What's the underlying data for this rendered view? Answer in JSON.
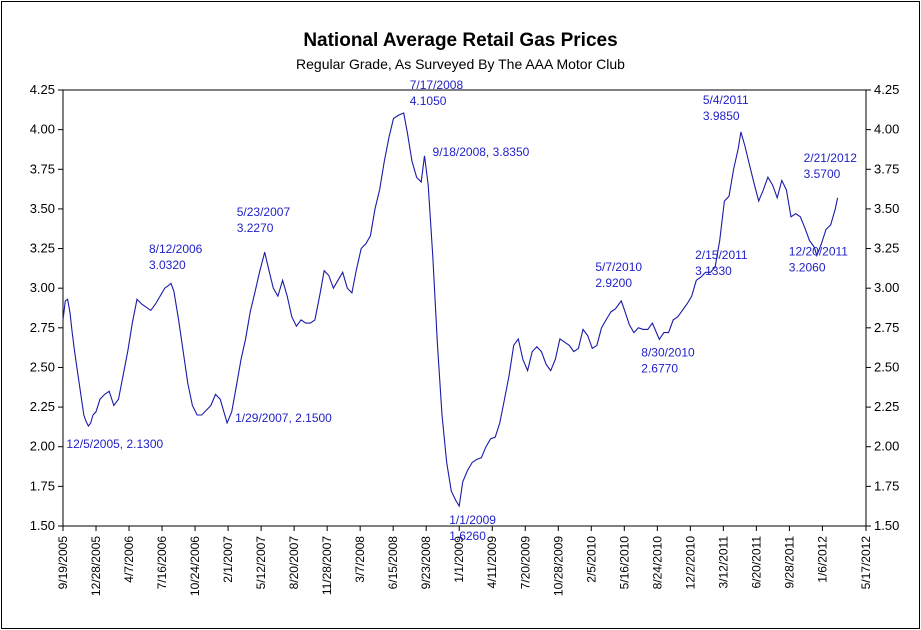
{
  "chart_data": {
    "type": "line",
    "title": "National Average Retail Gas Prices",
    "subtitle": "Regular Grade, As Surveyed By The AAA Motor Club",
    "xlabel": "",
    "ylabel": "",
    "ylim": [
      1.5,
      4.25
    ],
    "xlim": [
      "2005-09-19",
      "2012-05-17"
    ],
    "grid": false,
    "line_color": "#1a1aa8",
    "annotation_color": "#1f1fc8",
    "y_ticks": [
      "1.50",
      "1.75",
      "2.00",
      "2.25",
      "2.50",
      "2.75",
      "3.00",
      "3.25",
      "3.50",
      "3.75",
      "4.00",
      "4.25"
    ],
    "x_ticks": [
      {
        "date": "2005-09-19",
        "label": "9/19/2005"
      },
      {
        "date": "2005-12-28",
        "label": "12/28/2005"
      },
      {
        "date": "2006-04-07",
        "label": "4/7/2006"
      },
      {
        "date": "2006-07-16",
        "label": "7/16/2006"
      },
      {
        "date": "2006-10-24",
        "label": "10/24/2006"
      },
      {
        "date": "2007-02-01",
        "label": "2/1/2007"
      },
      {
        "date": "2007-05-12",
        "label": "5/12/2007"
      },
      {
        "date": "2007-08-20",
        "label": "8/20/2007"
      },
      {
        "date": "2007-11-28",
        "label": "11/28/2007"
      },
      {
        "date": "2008-03-07",
        "label": "3/7/2008"
      },
      {
        "date": "2008-06-15",
        "label": "6/15/2008"
      },
      {
        "date": "2008-09-23",
        "label": "9/23/2008"
      },
      {
        "date": "2009-01-01",
        "label": "1/1/2009"
      },
      {
        "date": "2009-04-11",
        "label": "4/11/2009"
      },
      {
        "date": "2009-07-20",
        "label": "7/20/2009"
      },
      {
        "date": "2009-10-28",
        "label": "10/28/2009"
      },
      {
        "date": "2010-02-05",
        "label": "2/5/2010"
      },
      {
        "date": "2010-05-16",
        "label": "5/16/2010"
      },
      {
        "date": "2010-08-24",
        "label": "8/24/2010"
      },
      {
        "date": "2010-12-02",
        "label": "12/2/2010"
      },
      {
        "date": "2011-03-12",
        "label": "3/12/2011"
      },
      {
        "date": "2011-06-20",
        "label": "6/20/2011"
      },
      {
        "date": "2011-09-28",
        "label": "9/28/2011"
      },
      {
        "date": "2012-01-06",
        "label": "1/6/2012"
      },
      {
        "date": "2012-05-17",
        "label": "5/17/2012"
      }
    ],
    "series": [
      {
        "points": [
          [
            "2005-09-19",
            2.8
          ],
          [
            "2005-09-26",
            2.92
          ],
          [
            "2005-10-03",
            2.93
          ],
          [
            "2005-10-10",
            2.85
          ],
          [
            "2005-10-17",
            2.72
          ],
          [
            "2005-10-24",
            2.6
          ],
          [
            "2005-10-31",
            2.5
          ],
          [
            "2005-11-07",
            2.4
          ],
          [
            "2005-11-14",
            2.3
          ],
          [
            "2005-11-21",
            2.2
          ],
          [
            "2005-11-28",
            2.16
          ],
          [
            "2005-12-05",
            2.13
          ],
          [
            "2005-12-12",
            2.15
          ],
          [
            "2005-12-19",
            2.2
          ],
          [
            "2005-12-28",
            2.22
          ],
          [
            "2006-01-09",
            2.3
          ],
          [
            "2006-01-23",
            2.33
          ],
          [
            "2006-02-06",
            2.35
          ],
          [
            "2006-02-20",
            2.26
          ],
          [
            "2006-03-06",
            2.3
          ],
          [
            "2006-03-20",
            2.45
          ],
          [
            "2006-04-03",
            2.6
          ],
          [
            "2006-04-17",
            2.78
          ],
          [
            "2006-05-01",
            2.93
          ],
          [
            "2006-05-15",
            2.9
          ],
          [
            "2006-05-29",
            2.88
          ],
          [
            "2006-06-12",
            2.86
          ],
          [
            "2006-06-26",
            2.9
          ],
          [
            "2006-07-10",
            2.95
          ],
          [
            "2006-07-24",
            3.0
          ],
          [
            "2006-08-07",
            3.02
          ],
          [
            "2006-08-12",
            3.03
          ],
          [
            "2006-08-21",
            2.98
          ],
          [
            "2006-09-04",
            2.8
          ],
          [
            "2006-09-18",
            2.6
          ],
          [
            "2006-10-02",
            2.4
          ],
          [
            "2006-10-16",
            2.26
          ],
          [
            "2006-10-30",
            2.2
          ],
          [
            "2006-11-13",
            2.2
          ],
          [
            "2006-11-27",
            2.23
          ],
          [
            "2006-12-11",
            2.26
          ],
          [
            "2006-12-25",
            2.33
          ],
          [
            "2007-01-08",
            2.3
          ],
          [
            "2007-01-22",
            2.2
          ],
          [
            "2007-01-29",
            2.15
          ],
          [
            "2007-02-12",
            2.22
          ],
          [
            "2007-02-26",
            2.38
          ],
          [
            "2007-03-12",
            2.55
          ],
          [
            "2007-03-26",
            2.68
          ],
          [
            "2007-04-09",
            2.85
          ],
          [
            "2007-04-23",
            2.97
          ],
          [
            "2007-05-07",
            3.1
          ],
          [
            "2007-05-23",
            3.227
          ],
          [
            "2007-06-04",
            3.12
          ],
          [
            "2007-06-18",
            3.0
          ],
          [
            "2007-07-02",
            2.95
          ],
          [
            "2007-07-16",
            3.05
          ],
          [
            "2007-07-30",
            2.95
          ],
          [
            "2007-08-13",
            2.82
          ],
          [
            "2007-08-27",
            2.76
          ],
          [
            "2007-09-10",
            2.8
          ],
          [
            "2007-09-24",
            2.78
          ],
          [
            "2007-10-08",
            2.78
          ],
          [
            "2007-10-22",
            2.8
          ],
          [
            "2007-11-05",
            2.95
          ],
          [
            "2007-11-19",
            3.11
          ],
          [
            "2007-12-03",
            3.08
          ],
          [
            "2007-12-17",
            3.0
          ],
          [
            "2007-12-31",
            3.05
          ],
          [
            "2008-01-14",
            3.1
          ],
          [
            "2008-01-28",
            3.0
          ],
          [
            "2008-02-11",
            2.97
          ],
          [
            "2008-02-25",
            3.12
          ],
          [
            "2008-03-10",
            3.25
          ],
          [
            "2008-03-24",
            3.28
          ],
          [
            "2008-04-07",
            3.33
          ],
          [
            "2008-04-21",
            3.5
          ],
          [
            "2008-05-05",
            3.62
          ],
          [
            "2008-05-19",
            3.8
          ],
          [
            "2008-06-02",
            3.95
          ],
          [
            "2008-06-16",
            4.07
          ],
          [
            "2008-06-30",
            4.09
          ],
          [
            "2008-07-17",
            4.105
          ],
          [
            "2008-07-28",
            3.98
          ],
          [
            "2008-08-11",
            3.8
          ],
          [
            "2008-08-25",
            3.7
          ],
          [
            "2008-09-08",
            3.67
          ],
          [
            "2008-09-18",
            3.835
          ],
          [
            "2008-09-29",
            3.65
          ],
          [
            "2008-10-13",
            3.2
          ],
          [
            "2008-10-27",
            2.65
          ],
          [
            "2008-11-10",
            2.2
          ],
          [
            "2008-11-24",
            1.9
          ],
          [
            "2008-12-08",
            1.72
          ],
          [
            "2008-12-22",
            1.66
          ],
          [
            "2009-01-01",
            1.626
          ],
          [
            "2009-01-12",
            1.78
          ],
          [
            "2009-01-26",
            1.85
          ],
          [
            "2009-02-09",
            1.9
          ],
          [
            "2009-02-23",
            1.92
          ],
          [
            "2009-03-09",
            1.93
          ],
          [
            "2009-03-23",
            2.0
          ],
          [
            "2009-04-06",
            2.05
          ],
          [
            "2009-04-20",
            2.06
          ],
          [
            "2009-05-04",
            2.15
          ],
          [
            "2009-05-18",
            2.3
          ],
          [
            "2009-06-01",
            2.45
          ],
          [
            "2009-06-15",
            2.64
          ],
          [
            "2009-06-29",
            2.68
          ],
          [
            "2009-07-13",
            2.55
          ],
          [
            "2009-07-27",
            2.48
          ],
          [
            "2009-08-10",
            2.6
          ],
          [
            "2009-08-24",
            2.63
          ],
          [
            "2009-09-07",
            2.6
          ],
          [
            "2009-09-21",
            2.52
          ],
          [
            "2009-10-05",
            2.48
          ],
          [
            "2009-10-19",
            2.55
          ],
          [
            "2009-11-02",
            2.68
          ],
          [
            "2009-11-16",
            2.66
          ],
          [
            "2009-11-30",
            2.64
          ],
          [
            "2009-12-14",
            2.6
          ],
          [
            "2009-12-28",
            2.62
          ],
          [
            "2010-01-11",
            2.74
          ],
          [
            "2010-01-25",
            2.7
          ],
          [
            "2010-02-08",
            2.62
          ],
          [
            "2010-02-22",
            2.64
          ],
          [
            "2010-03-08",
            2.75
          ],
          [
            "2010-03-22",
            2.8
          ],
          [
            "2010-04-05",
            2.85
          ],
          [
            "2010-04-19",
            2.87
          ],
          [
            "2010-05-07",
            2.92
          ],
          [
            "2010-05-17",
            2.86
          ],
          [
            "2010-05-31",
            2.77
          ],
          [
            "2010-06-14",
            2.72
          ],
          [
            "2010-06-28",
            2.75
          ],
          [
            "2010-07-12",
            2.74
          ],
          [
            "2010-07-26",
            2.74
          ],
          [
            "2010-08-09",
            2.78
          ],
          [
            "2010-08-30",
            2.677
          ],
          [
            "2010-09-13",
            2.72
          ],
          [
            "2010-09-27",
            2.72
          ],
          [
            "2010-10-11",
            2.8
          ],
          [
            "2010-10-25",
            2.82
          ],
          [
            "2010-11-08",
            2.86
          ],
          [
            "2010-11-22",
            2.9
          ],
          [
            "2010-12-06",
            2.95
          ],
          [
            "2010-12-20",
            3.05
          ],
          [
            "2011-01-03",
            3.07
          ],
          [
            "2011-01-17",
            3.1
          ],
          [
            "2011-02-01",
            3.1
          ],
          [
            "2011-02-15",
            3.133
          ],
          [
            "2011-03-01",
            3.3
          ],
          [
            "2011-03-15",
            3.55
          ],
          [
            "2011-03-29",
            3.58
          ],
          [
            "2011-04-12",
            3.75
          ],
          [
            "2011-04-26",
            3.88
          ],
          [
            "2011-05-04",
            3.985
          ],
          [
            "2011-05-16",
            3.9
          ],
          [
            "2011-05-30",
            3.78
          ],
          [
            "2011-06-13",
            3.66
          ],
          [
            "2011-06-27",
            3.55
          ],
          [
            "2011-07-11",
            3.62
          ],
          [
            "2011-07-25",
            3.7
          ],
          [
            "2011-08-08",
            3.65
          ],
          [
            "2011-08-22",
            3.57
          ],
          [
            "2011-09-05",
            3.68
          ],
          [
            "2011-09-19",
            3.62
          ],
          [
            "2011-10-03",
            3.45
          ],
          [
            "2011-10-17",
            3.47
          ],
          [
            "2011-10-31",
            3.45
          ],
          [
            "2011-11-14",
            3.38
          ],
          [
            "2011-11-28",
            3.3
          ],
          [
            "2011-12-12",
            3.26
          ],
          [
            "2011-12-20",
            3.206
          ],
          [
            "2012-01-03",
            3.28
          ],
          [
            "2012-01-17",
            3.37
          ],
          [
            "2012-01-31",
            3.4
          ],
          [
            "2012-02-14",
            3.5
          ],
          [
            "2012-02-21",
            3.57
          ]
        ]
      }
    ],
    "annotations": [
      {
        "date": "2005-12-05",
        "value": 2.13,
        "lines": [
          "12/5/2005, 2.1300"
        ]
      },
      {
        "date": "2006-08-12",
        "value": 3.032,
        "lines": [
          "8/12/2006",
          "3.0320"
        ]
      },
      {
        "date": "2007-01-29",
        "value": 2.15,
        "lines": [
          "1/29/2007, 2.1500"
        ]
      },
      {
        "date": "2007-05-23",
        "value": 3.227,
        "lines": [
          "5/23/2007",
          "3.2270"
        ]
      },
      {
        "date": "2008-07-17",
        "value": 4.105,
        "lines": [
          "7/17/2008",
          "4.1050"
        ]
      },
      {
        "date": "2008-09-18",
        "value": 3.835,
        "lines": [
          "9/18/2008, 3.8350"
        ]
      },
      {
        "date": "2009-01-01",
        "value": 1.626,
        "lines": [
          "1/1/2009",
          "1.6260"
        ]
      },
      {
        "date": "2010-05-07",
        "value": 2.92,
        "lines": [
          "5/7/2010",
          "2.9200"
        ]
      },
      {
        "date": "2010-08-30",
        "value": 2.677,
        "lines": [
          "8/30/2010",
          "2.6770"
        ]
      },
      {
        "date": "2011-02-15",
        "value": 3.133,
        "lines": [
          "2/15/2011",
          "3.1330"
        ]
      },
      {
        "date": "2011-05-04",
        "value": 3.985,
        "lines": [
          "5/4/2011",
          "3.9850"
        ]
      },
      {
        "date": "2011-12-20",
        "value": 3.206,
        "lines": [
          "12/20/2011",
          "3.2060"
        ]
      },
      {
        "date": "2012-02-21",
        "value": 3.57,
        "lines": [
          "2/21/2012",
          "3.5700"
        ]
      }
    ]
  }
}
